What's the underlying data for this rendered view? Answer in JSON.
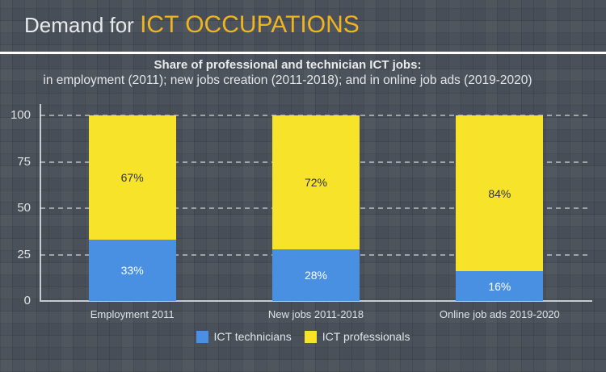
{
  "header": {
    "title_prefix": "Demand for ",
    "title_highlight": "ICT OCCUPATIONS"
  },
  "subtitle": {
    "line1": "Share of professional and technician ICT jobs:",
    "line2": "in employment (2011); new jobs creation (2011-2018); and in online job ads (2019-2020)"
  },
  "chart_data": {
    "type": "bar",
    "stacked": true,
    "title": "Share of professional and technician ICT jobs",
    "categories": [
      "Employment 2011",
      "New jobs 2011-2018",
      "Online job ads 2019-2020"
    ],
    "series": [
      {
        "name": "ICT technicians",
        "color": "#4a90e2",
        "label_color": "#ffffff",
        "values": [
          33,
          28,
          16
        ]
      },
      {
        "name": "ICT professionals",
        "color": "#f6e32a",
        "label_color": "#2f3338",
        "values": [
          67,
          72,
          84
        ]
      }
    ],
    "value_suffix": "%",
    "ylim": [
      0,
      100
    ],
    "yticks": [
      0,
      25,
      50,
      75,
      100
    ],
    "grid": "dashed-horizontal",
    "legend_position": "bottom"
  },
  "colors": {
    "background": "#474e57",
    "title_text": "#e7e9eb",
    "title_highlight": "#f0b41f",
    "axis": "#c6cbd2",
    "gridline": "rgba(255,255,255,0.48)",
    "divider": "#ffffff"
  }
}
